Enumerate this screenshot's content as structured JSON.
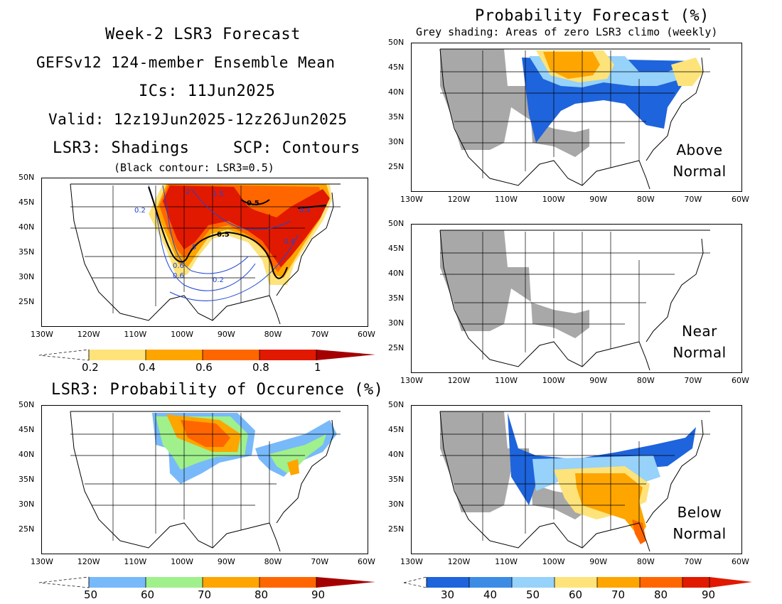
{
  "header": {
    "line1": "Week-2 LSR3 Forecast",
    "line2": "GEFSv12 124-member Ensemble Mean",
    "line3": "ICs: 11Jun2025",
    "line4": "Valid: 12z19Jun2025-12z26Jun2025",
    "line5a": "LSR3: Shadings",
    "line5b": "SCP: Contours",
    "line6": "(Black contour: LSR3=0.5)"
  },
  "right_header": {
    "title": "Probability Forecast (%)",
    "subtitle": "Grey shading: Areas of zero LSR3 climo (weekly)"
  },
  "lower_left_title": "LSR3: Probability of Occurence (%)",
  "axes": {
    "lat_labels": [
      "50N",
      "45N",
      "40N",
      "35N",
      "30N",
      "25N"
    ],
    "lon_labels": [
      "130W",
      "120W",
      "110W",
      "100W",
      "90W",
      "80W",
      "70W",
      "60W"
    ]
  },
  "panels": {
    "above": {
      "label_line1": "Above",
      "label_line2": "Normal"
    },
    "near": {
      "label_line1": "Near",
      "label_line2": "Normal"
    },
    "below": {
      "label_line1": "Below",
      "label_line2": "Normal"
    }
  },
  "contour_labels": {
    "black": [
      "0.5",
      "0.5"
    ],
    "blue": [
      "2",
      "1.5",
      "0.2",
      "0.4",
      "0.4",
      ".5",
      "0.6",
      "0.6",
      "0.2"
    ]
  },
  "colorbars": {
    "lsr3": {
      "labels": [
        "0.2",
        "0.4",
        "0.6",
        "0.8",
        "1"
      ],
      "colors": [
        "#fde37a",
        "#fea500",
        "#ff6600",
        "#e11900",
        "#a50000"
      ]
    },
    "occurrence": {
      "labels": [
        "50",
        "60",
        "70",
        "80",
        "90"
      ],
      "colors": [
        "#78b9fa",
        "#a0f08c",
        "#fea500",
        "#ff6600",
        "#e11900",
        "#a50000"
      ]
    },
    "probability": {
      "labels": [
        "30",
        "40",
        "50",
        "60",
        "70",
        "80",
        "90"
      ],
      "colors": [
        "#1e64dc",
        "#3c8ce6",
        "#96d2fa",
        "#fde37a",
        "#fea500",
        "#ff6600",
        "#e11900"
      ]
    }
  },
  "colors": {
    "grey_zero_climo": "#a8a8a8",
    "contour_blue": "#1e46d2",
    "contour_black": "#000000"
  }
}
